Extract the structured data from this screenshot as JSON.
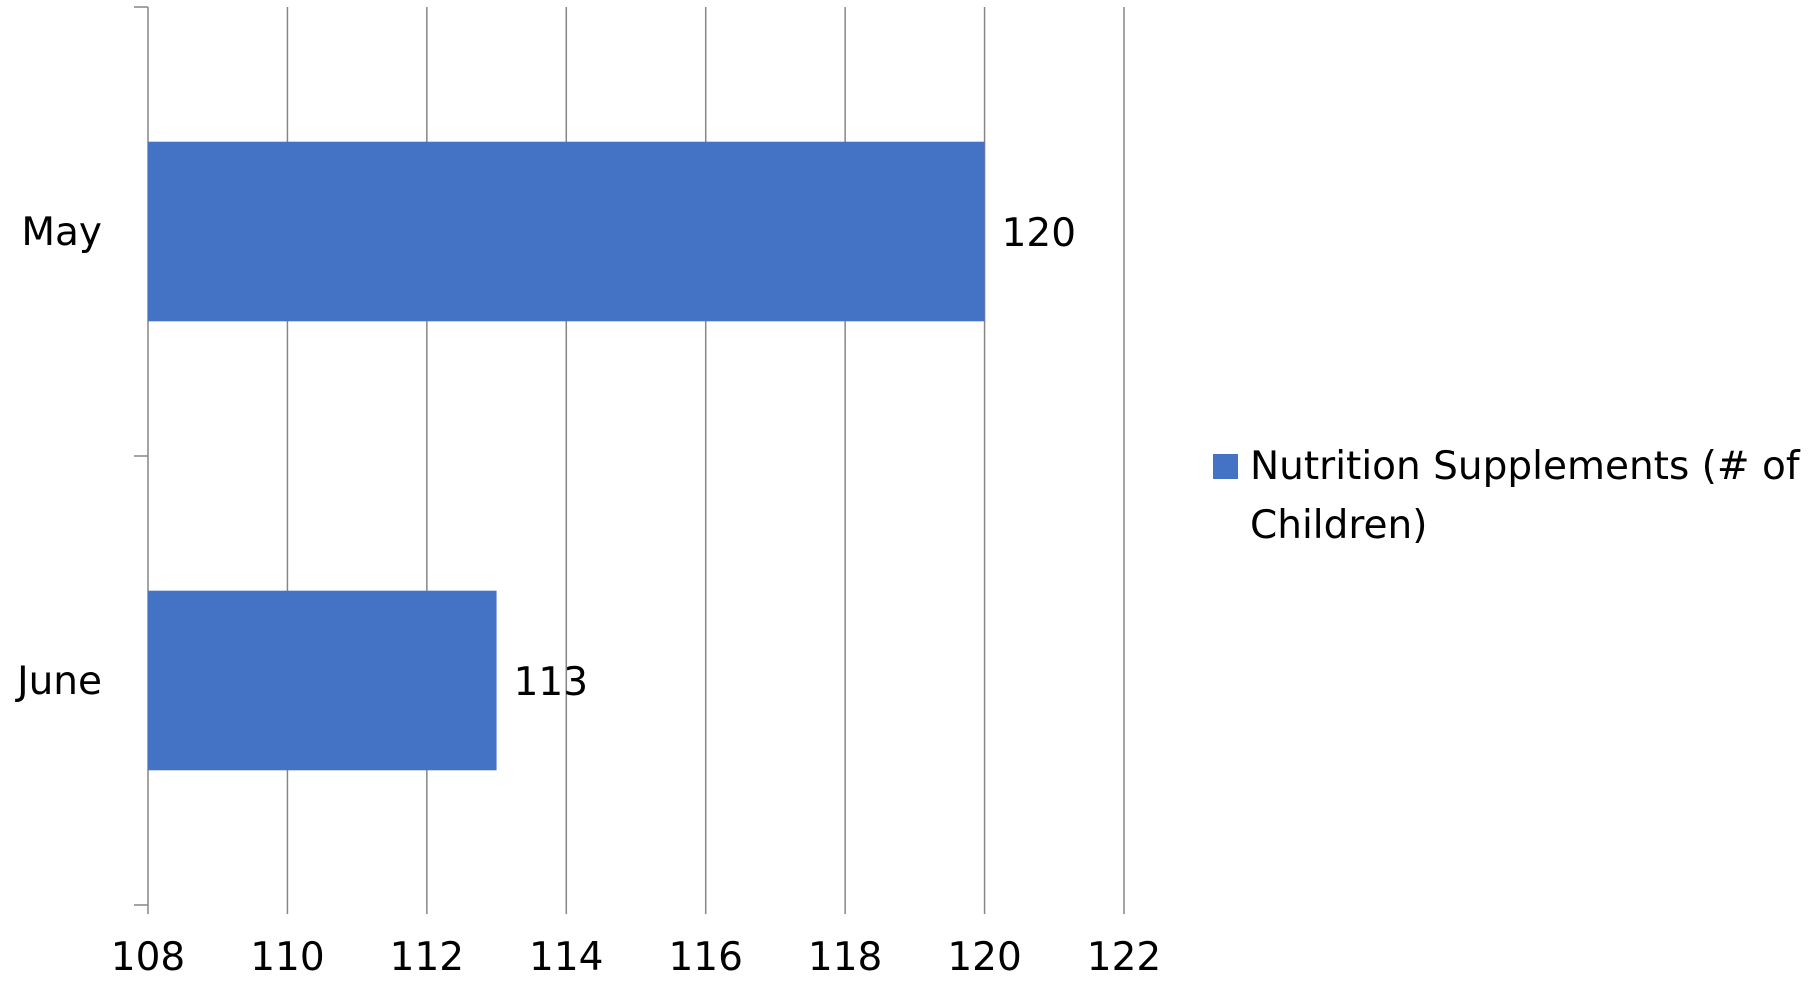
{
  "chart_data": {
    "type": "bar",
    "orientation": "horizontal",
    "categories": [
      "May",
      "June"
    ],
    "series": [
      {
        "name": "Nutrition Supplements (# of Children)",
        "values": [
          120,
          113
        ],
        "color": "#4472C4"
      }
    ],
    "data_labels": [
      "120",
      "113"
    ],
    "xlim": [
      108,
      122
    ],
    "x_ticks": [
      108,
      110,
      112,
      114,
      116,
      118,
      120,
      122
    ],
    "x_tick_labels": [
      "108",
      "110",
      "112",
      "114",
      "116",
      "118",
      "120",
      "122"
    ],
    "title": "",
    "xlabel": "",
    "ylabel": "",
    "grid": "vertical",
    "legend_position": "right",
    "colors": {
      "bar": "#4472C4",
      "grid": "#868686",
      "axis": "#868686",
      "text": "#000000"
    }
  }
}
